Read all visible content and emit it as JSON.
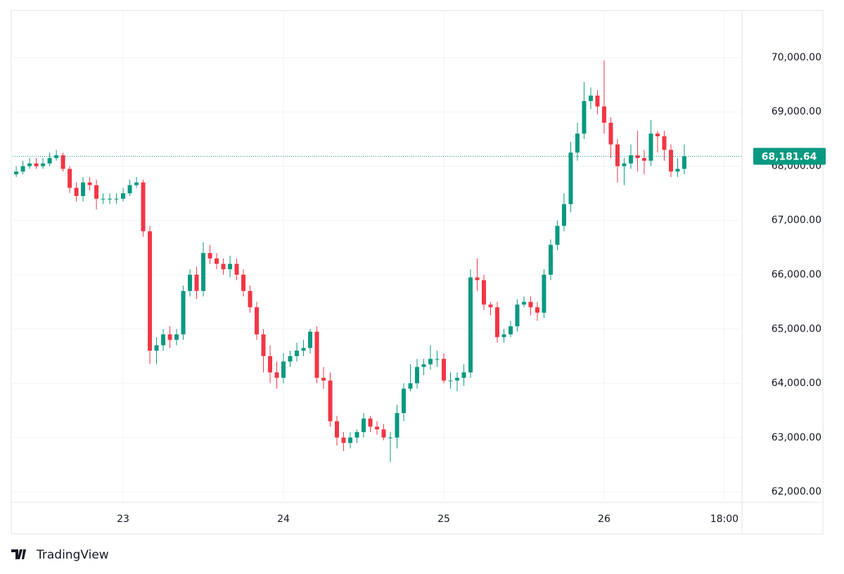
{
  "chart_data": {
    "type": "candlestick",
    "brand": "TradingView",
    "up_color": "#089981",
    "down_color": "#f23645",
    "grid": true,
    "last_price": {
      "value": 68181.64,
      "label": "68,181.64"
    },
    "xlim": [
      22.311,
      26.86
    ],
    "xticks": [
      23,
      24,
      25,
      26,
      {
        "value": 26.75,
        "label": "18:00"
      }
    ],
    "ylim": [
      61806,
      70867
    ],
    "yticks": [
      {
        "value": 62000,
        "label": "62,000.00"
      },
      {
        "value": 63000,
        "label": "63,000.00"
      },
      {
        "value": 64000,
        "label": "64,000.00"
      },
      {
        "value": 65000,
        "label": "65,000.00"
      },
      {
        "value": 66000,
        "label": "66,000.00"
      },
      {
        "value": 67000,
        "label": "67,000.00"
      },
      {
        "value": 68000,
        "label": "68,000.00"
      },
      {
        "value": 69000,
        "label": "69,000.00"
      },
      {
        "value": 70000,
        "label": "70,000.00"
      }
    ],
    "x": [
      22.3333,
      22.375,
      22.4167,
      22.4583,
      22.5,
      22.5417,
      22.5833,
      22.625,
      22.6667,
      22.7083,
      22.75,
      22.7917,
      22.8333,
      22.875,
      22.9167,
      22.9583,
      23,
      23.0417,
      23.0833,
      23.125,
      23.1667,
      23.2083,
      23.25,
      23.2917,
      23.3333,
      23.375,
      23.4167,
      23.4583,
      23.5,
      23.5417,
      23.5833,
      23.625,
      23.6667,
      23.7083,
      23.75,
      23.7917,
      23.8333,
      23.875,
      23.9167,
      23.9583,
      24,
      24.0417,
      24.0833,
      24.125,
      24.1667,
      24.2083,
      24.25,
      24.2917,
      24.3333,
      24.375,
      24.4167,
      24.4583,
      24.5,
      24.5417,
      24.5833,
      24.625,
      24.6667,
      24.7083,
      24.75,
      24.7917,
      24.8333,
      24.875,
      24.9167,
      24.9583,
      25,
      25.0417,
      25.0833,
      25.125,
      25.1667,
      25.2083,
      25.25,
      25.2917,
      25.3333,
      25.375,
      25.4167,
      25.4583,
      25.5,
      25.5417,
      25.5833,
      25.625,
      25.6667,
      25.7083,
      25.75,
      25.7917,
      25.8333,
      25.875,
      25.9167,
      25.9583,
      26,
      26.0417,
      26.0833,
      26.125,
      26.1667,
      26.2083,
      26.25,
      26.2917,
      26.3333,
      26.375,
      26.4167,
      26.4583,
      26.5
    ],
    "open": [
      67850,
      67900,
      68000,
      68050,
      68000,
      68050,
      68150,
      68200,
      67950,
      67600,
      67450,
      67700,
      67650,
      67400,
      67400,
      67400,
      67400,
      67500,
      67650,
      67700,
      66800,
      64600,
      64700,
      64900,
      64800,
      64900,
      65700,
      66000,
      65700,
      66400,
      66300,
      66200,
      66100,
      66200,
      66000,
      65700,
      65400,
      64900,
      64500,
      64200,
      64100,
      64400,
      64500,
      64600,
      64650,
      64950,
      64100,
      64050,
      63300,
      63000,
      62900,
      63000,
      63100,
      63350,
      63200,
      63150,
      63000,
      63000,
      63450,
      63900,
      64000,
      64300,
      64350,
      64450,
      64450,
      64050,
      64050,
      64100,
      64200,
      65950,
      65900,
      65450,
      65400,
      64850,
      64900,
      65050,
      65450,
      65500,
      65400,
      65300,
      66000,
      66550,
      66900,
      67300,
      68250,
      68600,
      69200,
      69300,
      69100,
      68800,
      68400,
      68000,
      68050,
      68200,
      68150,
      68100,
      68600,
      68550,
      68300,
      67900,
      67950
    ],
    "high": [
      68000,
      68100,
      68150,
      68150,
      68150,
      68250,
      68300,
      68250,
      68000,
      67700,
      67800,
      67800,
      67750,
      67500,
      67500,
      67500,
      67600,
      67750,
      67800,
      67750,
      66900,
      64850,
      65000,
      65050,
      65000,
      65800,
      66100,
      66150,
      66600,
      66550,
      66400,
      66300,
      66350,
      66300,
      66100,
      65800,
      65500,
      65000,
      64700,
      64400,
      64550,
      64600,
      64750,
      64800,
      65000,
      65050,
      64300,
      64200,
      63400,
      63100,
      63100,
      63150,
      63450,
      63400,
      63300,
      63250,
      63100,
      63600,
      64000,
      64350,
      64450,
      64450,
      64700,
      64600,
      64550,
      64200,
      64200,
      64350,
      66100,
      66300,
      66000,
      65500,
      65500,
      65000,
      65150,
      65550,
      65600,
      65600,
      65500,
      66100,
      66650,
      67000,
      67500,
      68450,
      68800,
      69550,
      69450,
      69400,
      69950,
      68900,
      68500,
      68150,
      68400,
      68650,
      68300,
      68850,
      68650,
      68650,
      68400,
      68150,
      68400
    ],
    "low": [
      67800,
      67850,
      67950,
      67950,
      67950,
      68000,
      68100,
      67900,
      67500,
      67350,
      67350,
      67550,
      67200,
      67300,
      67300,
      67300,
      67350,
      67450,
      67600,
      66700,
      64350,
      64350,
      64600,
      64650,
      64700,
      64800,
      65600,
      65550,
      65600,
      66200,
      66100,
      66000,
      65950,
      65900,
      65600,
      65300,
      64800,
      64200,
      64000,
      63900,
      64000,
      64300,
      64400,
      64500,
      64550,
      64000,
      63900,
      63200,
      62850,
      62750,
      62800,
      62900,
      63000,
      63100,
      63050,
      62950,
      62550,
      62800,
      63300,
      63850,
      63900,
      64150,
      64250,
      64300,
      64000,
      63900,
      63850,
      63950,
      64100,
      65700,
      65350,
      65250,
      64750,
      64750,
      64850,
      64950,
      65400,
      65250,
      65150,
      65200,
      65900,
      66450,
      66800,
      67150,
      68100,
      68500,
      69050,
      68950,
      68600,
      68150,
      67700,
      67650,
      67950,
      67900,
      67850,
      68000,
      68250,
      68100,
      67800,
      67800,
      67850
    ],
    "close": [
      67900,
      68000,
      68050,
      68000,
      68050,
      68150,
      68200,
      67950,
      67600,
      67450,
      67700,
      67650,
      67400,
      67400,
      67400,
      67400,
      67500,
      67650,
      67700,
      66800,
      64600,
      64700,
      64900,
      64800,
      64900,
      65700,
      66000,
      65700,
      66400,
      66300,
      66200,
      66100,
      66200,
      66000,
      65700,
      65400,
      64900,
      64500,
      64200,
      64100,
      64400,
      64500,
      64600,
      64650,
      64950,
      64100,
      64050,
      63300,
      63000,
      62900,
      63000,
      63100,
      63350,
      63200,
      63150,
      63000,
      63000,
      63450,
      63900,
      64000,
      64300,
      64350,
      64450,
      64450,
      64050,
      64050,
      64100,
      64200,
      65950,
      65900,
      65450,
      65400,
      64850,
      64900,
      65050,
      65450,
      65500,
      65400,
      65300,
      66000,
      66550,
      66900,
      67300,
      68250,
      68600,
      69200,
      69300,
      69100,
      68800,
      68400,
      68000,
      68050,
      68200,
      68150,
      68100,
      68600,
      68550,
      68300,
      67900,
      67950,
      68181.64
    ]
  }
}
